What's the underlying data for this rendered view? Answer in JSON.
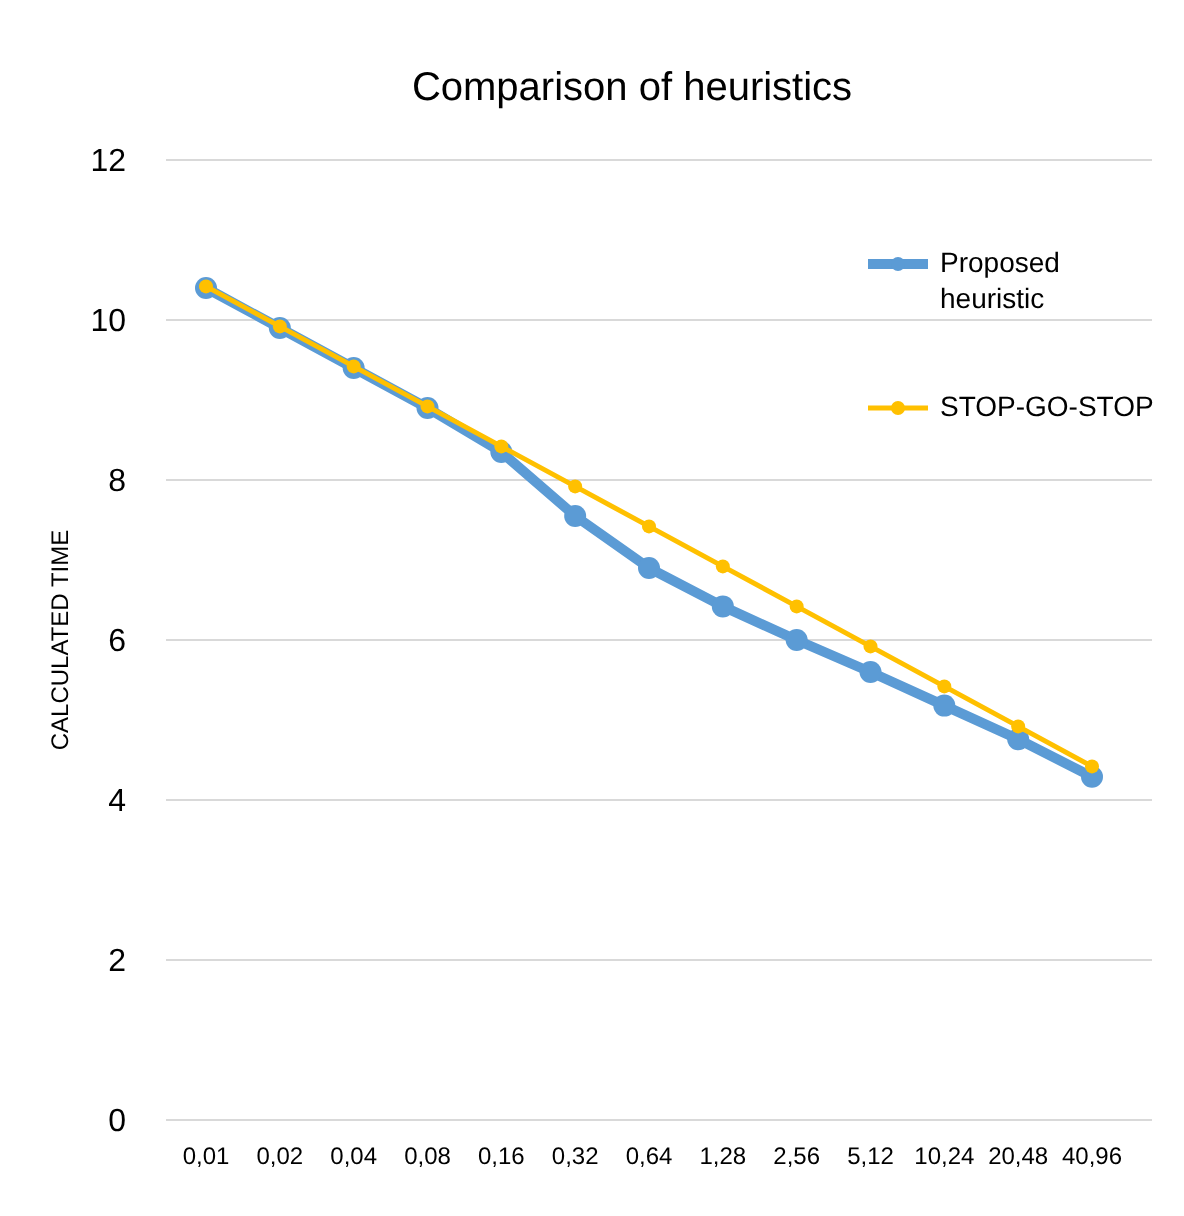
{
  "chart_data": {
    "type": "line",
    "title": "Comparison of heuristics",
    "ylabel": "CALCULATED TIME",
    "categories": [
      "0,01",
      "0,02",
      "0,04",
      "0,08",
      "0,16",
      "0,32",
      "0,64",
      "1,28",
      "2,56",
      "5,12",
      "10,24",
      "20,48",
      "40,96"
    ],
    "series": [
      {
        "name": "Proposed heuristic",
        "color": "#5b9bd5",
        "values": [
          10.4,
          9.9,
          9.4,
          8.9,
          8.35,
          7.55,
          6.9,
          6.42,
          6.0,
          5.6,
          5.18,
          4.76,
          4.29
        ]
      },
      {
        "name": "STOP-GO-STOP",
        "color": "#ffc000",
        "values": [
          10.42,
          9.92,
          9.42,
          8.92,
          8.42,
          7.92,
          7.42,
          6.92,
          6.42,
          5.92,
          5.42,
          4.92,
          4.42
        ]
      }
    ],
    "ylim": [
      0,
      12
    ],
    "yticks": [
      0,
      2,
      4,
      6,
      8,
      10,
      12
    ],
    "grid": "y",
    "legend": "top right",
    "marker": "circle",
    "line_style": "solid"
  }
}
